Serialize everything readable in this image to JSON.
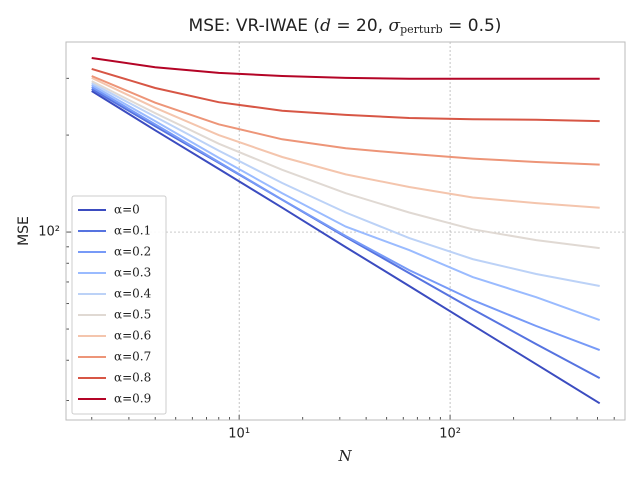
{
  "chart_data": {
    "type": "line",
    "title": [
      "MSE: VR-IWAE (",
      "d",
      " = 20, ",
      "σ",
      "perturb",
      " = 0.5)"
    ],
    "xlabel": "N",
    "ylabel": "MSE",
    "x": [
      2,
      4,
      8,
      16,
      32,
      64,
      128,
      256,
      512
    ],
    "xscale": "log",
    "yscale": "log",
    "xlim": [
      1.51,
      675
    ],
    "ylim": [
      26.1,
      389
    ],
    "xticks": [
      {
        "value": 10,
        "label": "10¹"
      },
      {
        "value": 100,
        "label": "10²"
      }
    ],
    "yticks": [
      {
        "value": 100,
        "label": "10²"
      }
    ],
    "xminorticks": [
      2,
      3,
      4,
      5,
      6,
      7,
      8,
      9,
      20,
      30,
      40,
      50,
      60,
      70,
      80,
      90,
      200,
      300,
      400,
      500,
      600
    ],
    "yminorticks": [
      30,
      40,
      50,
      60,
      70,
      80,
      90,
      200,
      300
    ],
    "grid": true,
    "legend": "lower left",
    "series": [
      {
        "name": "α=0",
        "color": "#3b4cc0",
        "values": [
          274,
          207,
          157,
          119,
          89.8,
          68.0,
          51.4,
          38.9,
          29.4
        ]
      },
      {
        "name": "α=0.1",
        "color": "#5673e0",
        "values": [
          278,
          213,
          164,
          126,
          96.5,
          74.6,
          57.6,
          44.9,
          35.2
        ]
      },
      {
        "name": "α=0.2",
        "color": "#779af7",
        "values": [
          282,
          216,
          165,
          126,
          97.2,
          76.2,
          61.5,
          51.1,
          43.0
        ]
      },
      {
        "name": "α=0.3",
        "color": "#9abbff",
        "values": [
          286,
          221,
          170,
          132,
          104,
          87.9,
          72.5,
          62.8,
          53.3
        ]
      },
      {
        "name": "α=0.4",
        "color": "#bcd2f7",
        "values": [
          290,
          228,
          179,
          142,
          115,
          95.8,
          82.4,
          74.1,
          68.0
        ]
      },
      {
        "name": "α=0.5",
        "color": "#e0d9d3",
        "values": [
          294,
          234,
          188,
          156,
          132,
          115,
          102,
          94.4,
          89.2
        ]
      },
      {
        "name": "α=0.6",
        "color": "#f4c5ad",
        "values": [
          301,
          243,
          200,
          171,
          151,
          138,
          128,
          123,
          119
        ]
      },
      {
        "name": "α=0.7",
        "color": "#ed9578",
        "values": [
          305,
          252,
          216,
          194,
          182,
          175,
          169,
          165,
          162
        ]
      },
      {
        "name": "α=0.8",
        "color": "#d75645",
        "values": [
          321,
          280,
          253,
          238,
          231,
          226,
          224,
          223,
          221
        ]
      },
      {
        "name": "α=0.9",
        "color": "#b40426",
        "values": [
          347,
          325,
          312,
          305,
          301,
          299,
          299,
          299,
          299
        ]
      }
    ]
  }
}
